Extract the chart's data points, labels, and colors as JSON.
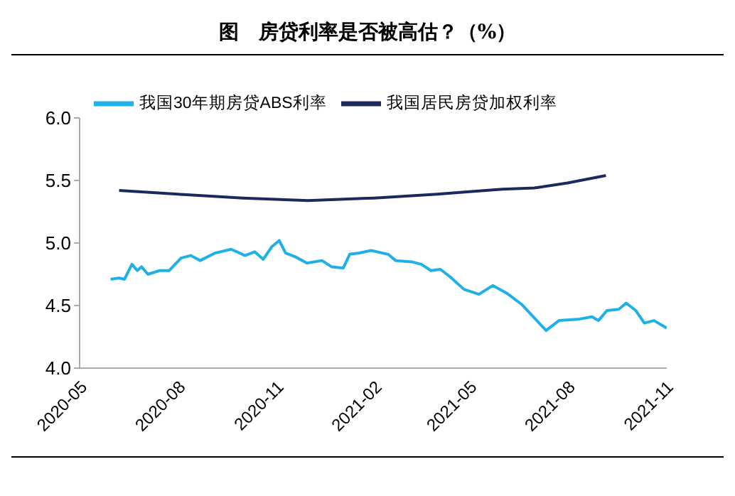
{
  "chart_data": {
    "type": "line",
    "title": "图　房贷利率是否被高估？（%）",
    "series": [
      {
        "name": "我国30年期房贷ABS利率",
        "color": "#1fb0e8",
        "x": [
          "2020-05-30",
          "2020-06-07",
          "2020-06-12",
          "2020-06-19",
          "2020-06-24",
          "2020-06-28",
          "2020-07-04",
          "2020-07-15",
          "2020-07-24",
          "2020-08-04",
          "2020-08-13",
          "2020-08-22",
          "2020-09-05",
          "2020-09-20",
          "2020-10-03",
          "2020-10-12",
          "2020-10-20",
          "2020-10-28",
          "2020-11-04",
          "2020-11-10",
          "2020-11-19",
          "2020-11-30",
          "2020-12-14",
          "2020-12-23",
          "2021-01-03",
          "2021-01-09",
          "2021-01-18",
          "2021-01-29",
          "2021-02-14",
          "2021-02-21",
          "2021-03-08",
          "2021-03-17",
          "2021-03-26",
          "2021-04-04",
          "2021-04-13",
          "2021-04-26",
          "2021-05-10",
          "2021-05-23",
          "2021-06-05",
          "2021-06-19",
          "2021-06-30",
          "2021-07-12",
          "2021-07-24",
          "2021-08-11",
          "2021-08-24",
          "2021-08-30",
          "2021-09-07",
          "2021-09-18",
          "2021-09-25",
          "2021-10-04",
          "2021-10-12",
          "2021-10-21",
          "2021-11-02"
        ],
        "values": [
          4.71,
          4.72,
          4.71,
          4.83,
          4.78,
          4.81,
          4.75,
          4.78,
          4.78,
          4.88,
          4.9,
          4.86,
          4.92,
          4.95,
          4.9,
          4.93,
          4.87,
          4.97,
          5.02,
          4.92,
          4.89,
          4.84,
          4.86,
          4.81,
          4.8,
          4.91,
          4.92,
          4.94,
          4.91,
          4.86,
          4.85,
          4.83,
          4.78,
          4.79,
          4.73,
          4.63,
          4.59,
          4.66,
          4.6,
          4.51,
          4.41,
          4.3,
          4.38,
          4.39,
          4.41,
          4.38,
          4.46,
          4.47,
          4.52,
          4.46,
          4.36,
          4.38,
          4.32
        ]
      },
      {
        "name": "我国居民房贷加权利率",
        "color": "#1b2a5e",
        "x": [
          "2020-06-07",
          "2020-08-01",
          "2020-10-01",
          "2020-12-01",
          "2021-02-01",
          "2021-04-01",
          "2021-05-01",
          "2021-06-01",
          "2021-07-01",
          "2021-08-01",
          "2021-09-06"
        ],
        "values": [
          5.42,
          5.39,
          5.36,
          5.34,
          5.36,
          5.39,
          5.41,
          5.43,
          5.44,
          5.48,
          5.54
        ]
      }
    ],
    "xlim": [
      "2020-05-01",
      "2021-11-02"
    ],
    "xticks": [
      "2020-05",
      "2020-08",
      "2020-11",
      "2021-02",
      "2021-05",
      "2021-08",
      "2021-11"
    ],
    "ylim": [
      4,
      6
    ],
    "yticks": [
      {
        "value": 4,
        "label": "4.0"
      },
      {
        "value": 4.5,
        "label": "4.5"
      },
      {
        "value": 5,
        "label": "5.0"
      },
      {
        "value": 5.5,
        "label": "5.5"
      },
      {
        "value": 6,
        "label": "6.0"
      }
    ],
    "grid": false,
    "legend": "top",
    "marker": "none",
    "line_style": "solid"
  }
}
